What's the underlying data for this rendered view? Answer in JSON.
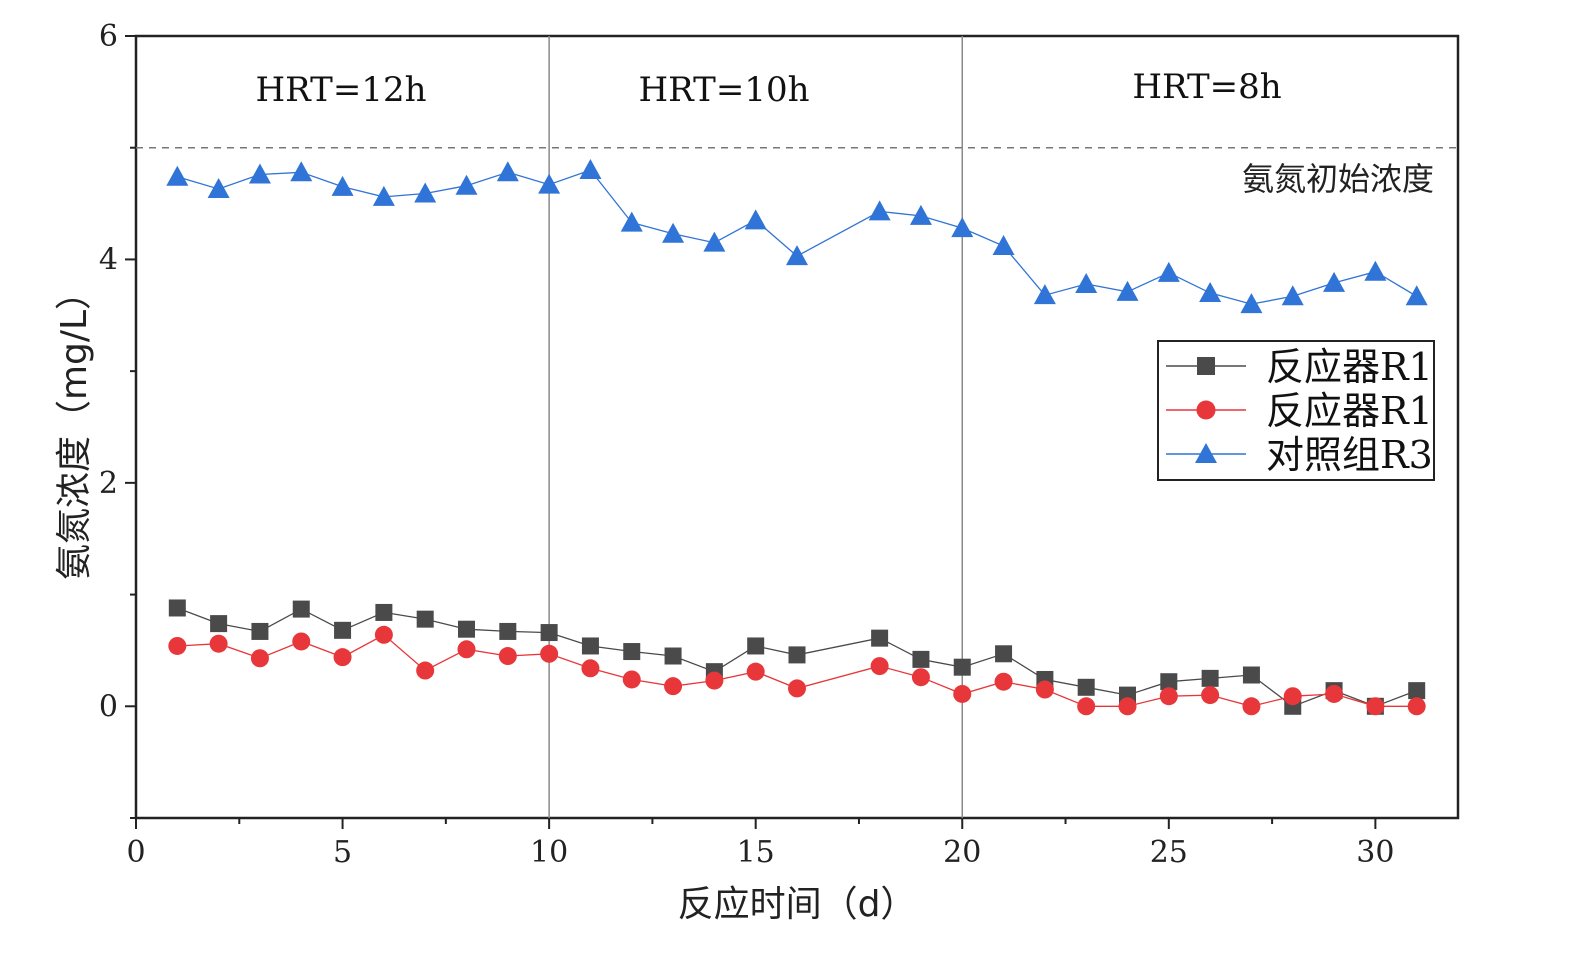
{
  "chart_data": {
    "type": "line",
    "xlabel": "反应时间（d）",
    "ylabel": "氨氮浓度（mg/L）",
    "xlim": [
      0,
      32
    ],
    "ylim": [
      -1,
      6
    ],
    "xticks": [
      0,
      5,
      10,
      15,
      20,
      25,
      30
    ],
    "yticks": [
      0,
      2,
      4,
      6
    ],
    "reference_line": {
      "y": 5,
      "label": "氨氮初始浓度"
    },
    "phase_dividers": [
      10,
      20
    ],
    "phases": [
      {
        "label": "HRT=12h",
        "x_center": 5
      },
      {
        "label": "HRT=10h",
        "x_center": 14.5
      },
      {
        "label": "HRT=8h",
        "x_center": 26.2
      }
    ],
    "legend_position": "right",
    "series": [
      {
        "name": "反应器R1",
        "marker": "square",
        "color": "#4a4a4a",
        "x": [
          1,
          2,
          3,
          4,
          5,
          6,
          7,
          8,
          9,
          10,
          11,
          12,
          13,
          14,
          15,
          16,
          18,
          19,
          20,
          21,
          22,
          23,
          24,
          25,
          26,
          27,
          28,
          29,
          30,
          31
        ],
        "values": [
          0.88,
          0.74,
          0.67,
          0.87,
          0.68,
          0.84,
          0.78,
          0.69,
          0.67,
          0.66,
          0.54,
          0.49,
          0.45,
          0.31,
          0.54,
          0.46,
          0.61,
          0.42,
          0.35,
          0.47,
          0.24,
          0.17,
          0.1,
          0.22,
          0.25,
          0.28,
          0.0,
          0.14,
          0.0,
          0.14
        ]
      },
      {
        "name": "反应器R1",
        "marker": "circle",
        "color": "#e8373a",
        "x": [
          1,
          2,
          3,
          4,
          5,
          6,
          7,
          8,
          9,
          10,
          11,
          12,
          13,
          14,
          15,
          16,
          18,
          19,
          20,
          21,
          22,
          23,
          24,
          25,
          26,
          27,
          28,
          29,
          30,
          31
        ],
        "values": [
          0.54,
          0.56,
          0.43,
          0.58,
          0.44,
          0.64,
          0.32,
          0.51,
          0.45,
          0.47,
          0.34,
          0.24,
          0.18,
          0.23,
          0.31,
          0.16,
          0.36,
          0.26,
          0.11,
          0.22,
          0.15,
          0.0,
          0.0,
          0.09,
          0.1,
          0.0,
          0.09,
          0.11,
          0.0,
          0.0
        ]
      },
      {
        "name": "对照组R3",
        "marker": "triangle",
        "color": "#2f74d6",
        "x": [
          1,
          2,
          3,
          4,
          5,
          6,
          7,
          8,
          9,
          10,
          11,
          12,
          13,
          14,
          15,
          16,
          18,
          19,
          20,
          21,
          22,
          23,
          24,
          25,
          26,
          27,
          28,
          29,
          30,
          31
        ],
        "values": [
          4.74,
          4.63,
          4.76,
          4.78,
          4.65,
          4.56,
          4.59,
          4.66,
          4.78,
          4.67,
          4.8,
          4.33,
          4.23,
          4.15,
          4.35,
          4.03,
          4.43,
          4.39,
          4.28,
          4.12,
          3.68,
          3.78,
          3.71,
          3.88,
          3.7,
          3.6,
          3.67,
          3.79,
          3.89,
          3.67
        ]
      }
    ]
  }
}
